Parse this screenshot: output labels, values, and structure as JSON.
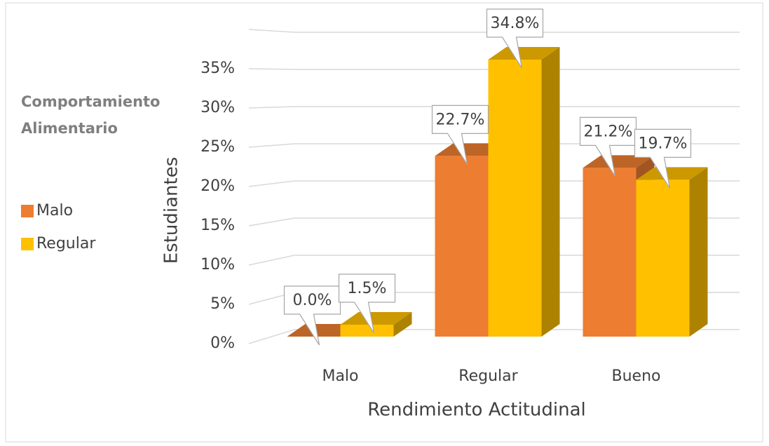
{
  "chart_data": {
    "type": "bar3d",
    "categories": [
      "Malo",
      "Regular",
      "Bueno"
    ],
    "series": [
      {
        "name": "Malo",
        "color": "#ED7D31",
        "values": [
          0,
          22.7,
          21.2
        ],
        "value_labels": [
          "0.0%",
          "22.7%",
          "21.2%"
        ]
      },
      {
        "name": "Regular",
        "color": "#FFC000",
        "values": [
          1.5,
          34.8,
          19.7
        ],
        "value_labels": [
          "1.5%",
          "34.8%",
          "19.7%"
        ]
      }
    ],
    "legend_title": "Comportamiento Alimentario",
    "xlabel": "Rendimiento Actitudinal",
    "ylabel": "Estudiantes",
    "ylim": [
      0,
      40
    ],
    "yticks": [
      {
        "value": 0,
        "label": "0%"
      },
      {
        "value": 5,
        "label": "5%"
      },
      {
        "value": 10,
        "label": "10%"
      },
      {
        "value": 15,
        "label": "15%"
      },
      {
        "value": 20,
        "label": "20%"
      },
      {
        "value": 25,
        "label": "25%"
      },
      {
        "value": 30,
        "label": "30%"
      },
      {
        "value": 35,
        "label": "35%"
      }
    ],
    "grid": true,
    "legend": "left"
  }
}
